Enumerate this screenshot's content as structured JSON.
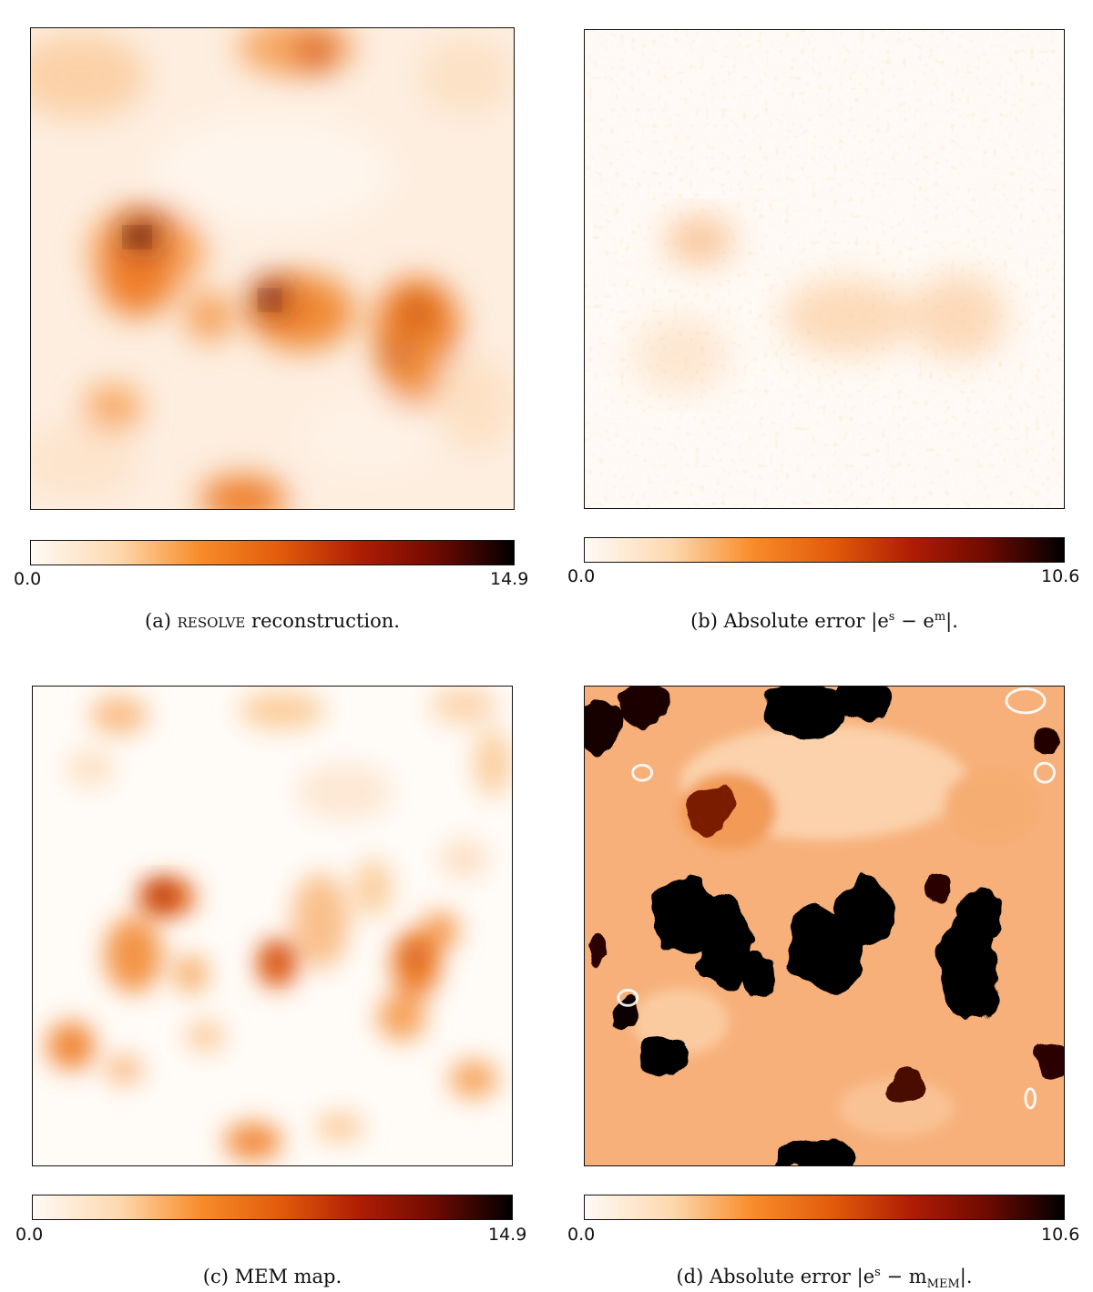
{
  "figure": {
    "panels": [
      {
        "id": "a",
        "colorbar": {
          "min_label": "0.0",
          "max_label": "14.9"
        },
        "caption": {
          "prefix": "(a) ",
          "smallcaps": "resolve",
          "suffix": " reconstruction."
        }
      },
      {
        "id": "b",
        "colorbar": {
          "min_label": "0.0",
          "max_label": "10.6"
        },
        "caption": {
          "text": "(b)  Absolute error |e",
          "sup1": "s",
          "mid": " − e",
          "sup2": "m",
          "end": "|."
        }
      },
      {
        "id": "c",
        "colorbar": {
          "min_label": "0.0",
          "max_label": "14.9"
        },
        "caption": {
          "text": "(c)  MEM map."
        }
      },
      {
        "id": "d",
        "colorbar": {
          "min_label": "0.0",
          "max_label": "10.6"
        },
        "caption": {
          "text": "(d)  Absolute error |e",
          "sup1": "s",
          "mid": " − m",
          "sub": "MEM",
          "end": "|."
        }
      }
    ],
    "colormap": [
      "#fffaf5",
      "#fdd9b0",
      "#f88c2a",
      "#e15a0b",
      "#b01d04",
      "#6e0a02",
      "#000000"
    ]
  }
}
